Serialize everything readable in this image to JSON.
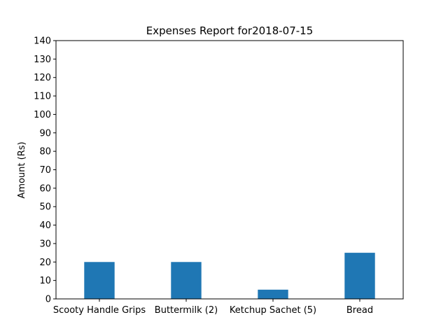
{
  "chart_data": {
    "type": "bar",
    "title": "Expenses Report for2018-07-15",
    "xlabel": "",
    "ylabel": "Amount (Rs)",
    "categories": [
      "Scooty Handle Grips",
      "Buttermilk (2)",
      "Ketchup Sachet (5)",
      "Bread"
    ],
    "values": [
      20,
      20,
      5,
      25
    ],
    "ylim": [
      0,
      140
    ],
    "yticks": [
      0,
      10,
      20,
      30,
      40,
      50,
      60,
      70,
      80,
      90,
      100,
      110,
      120,
      130,
      140
    ],
    "bar_color": "#1f77b4",
    "grid": false
  }
}
